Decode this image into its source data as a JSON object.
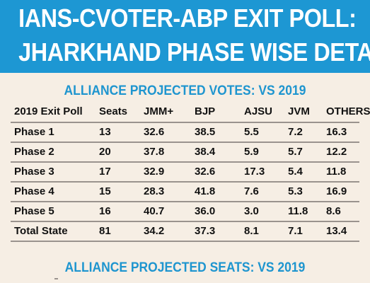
{
  "header": {
    "line1": "IANS-CVOTER-ABP EXIT POLL:",
    "line2": "JHARKHAND PHASE WISE DETAILS"
  },
  "colors": {
    "header_bg": "#1d97d3",
    "title_text": "#1e95cf",
    "page_bg": "#f6eee4",
    "row_rule": "#9a938e"
  },
  "votes_section": {
    "title": "ALLIANCE PROJECTED VOTES: VS 2019"
  },
  "seats_section": {
    "title": "ALLIANCE PROJECTED SEATS: VS 2019"
  },
  "chart_data": {
    "type": "table",
    "title": "ALLIANCE PROJECTED VOTES: VS 2019",
    "columns": [
      "2019 Exit Poll",
      "Seats",
      "JMM+",
      "BJP",
      "AJSU",
      "JVM",
      "OTHERS"
    ],
    "rows": [
      [
        "Phase 1",
        "13",
        "32.6",
        "38.5",
        "5.5",
        "7.2",
        "16.3"
      ],
      [
        "Phase 2",
        "20",
        "37.8",
        "38.4",
        "5.9",
        "5.7",
        "12.2"
      ],
      [
        "Phase 3",
        "17",
        "32.9",
        "32.6",
        "17.3",
        "5.4",
        "11.8"
      ],
      [
        "Phase 4",
        "15",
        "28.3",
        "41.8",
        "7.6",
        "5.3",
        "16.9"
      ],
      [
        "Phase 5",
        "16",
        "40.7",
        "36.0",
        "3.0",
        "11.8",
        "8.6"
      ],
      [
        "Total State",
        "81",
        "34.2",
        "37.3",
        "8.1",
        "7.1",
        "13.4"
      ]
    ]
  }
}
